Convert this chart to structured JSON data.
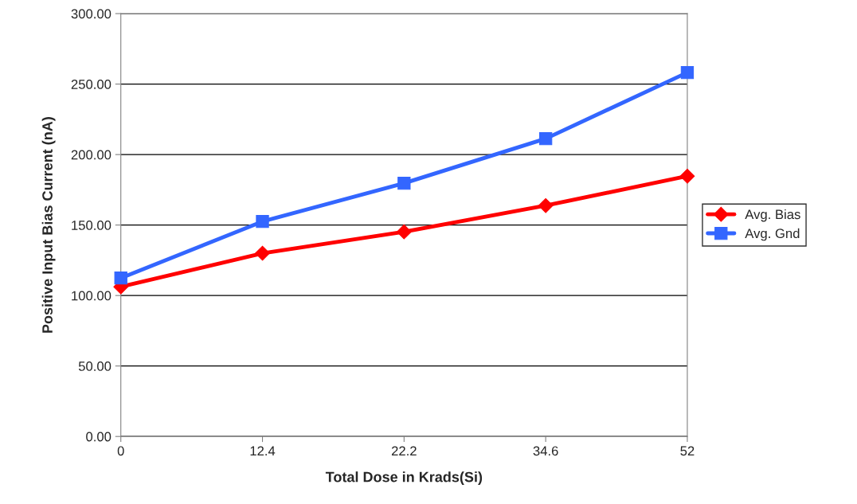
{
  "chart_data": {
    "type": "line",
    "xlabel": "Total Dose in Krads(Si)",
    "ylabel": "Positive Input Bias Current (nA)",
    "categories": [
      "0",
      "12.4",
      "22.2",
      "34.6",
      "52"
    ],
    "series": [
      {
        "name": "Avg. Bias",
        "color": "#ff0000",
        "marker": "diamond",
        "values": [
          106.2,
          130.0,
          145.2,
          163.8,
          184.7
        ]
      },
      {
        "name": "Avg. Gnd",
        "color": "#3366ff",
        "marker": "square",
        "values": [
          112.4,
          152.5,
          179.7,
          211.3,
          258.2
        ]
      }
    ],
    "ylim": [
      0,
      300
    ],
    "yticks": [
      {
        "value": 0,
        "label": "0.00"
      },
      {
        "value": 50,
        "label": "50.00"
      },
      {
        "value": 100,
        "label": "100.00"
      },
      {
        "value": 150,
        "label": "150.00"
      },
      {
        "value": 200,
        "label": "200.00"
      },
      {
        "value": 250,
        "label": "250.00"
      },
      {
        "value": 300,
        "label": "300.00"
      }
    ],
    "grid": "y",
    "legend": "right"
  }
}
